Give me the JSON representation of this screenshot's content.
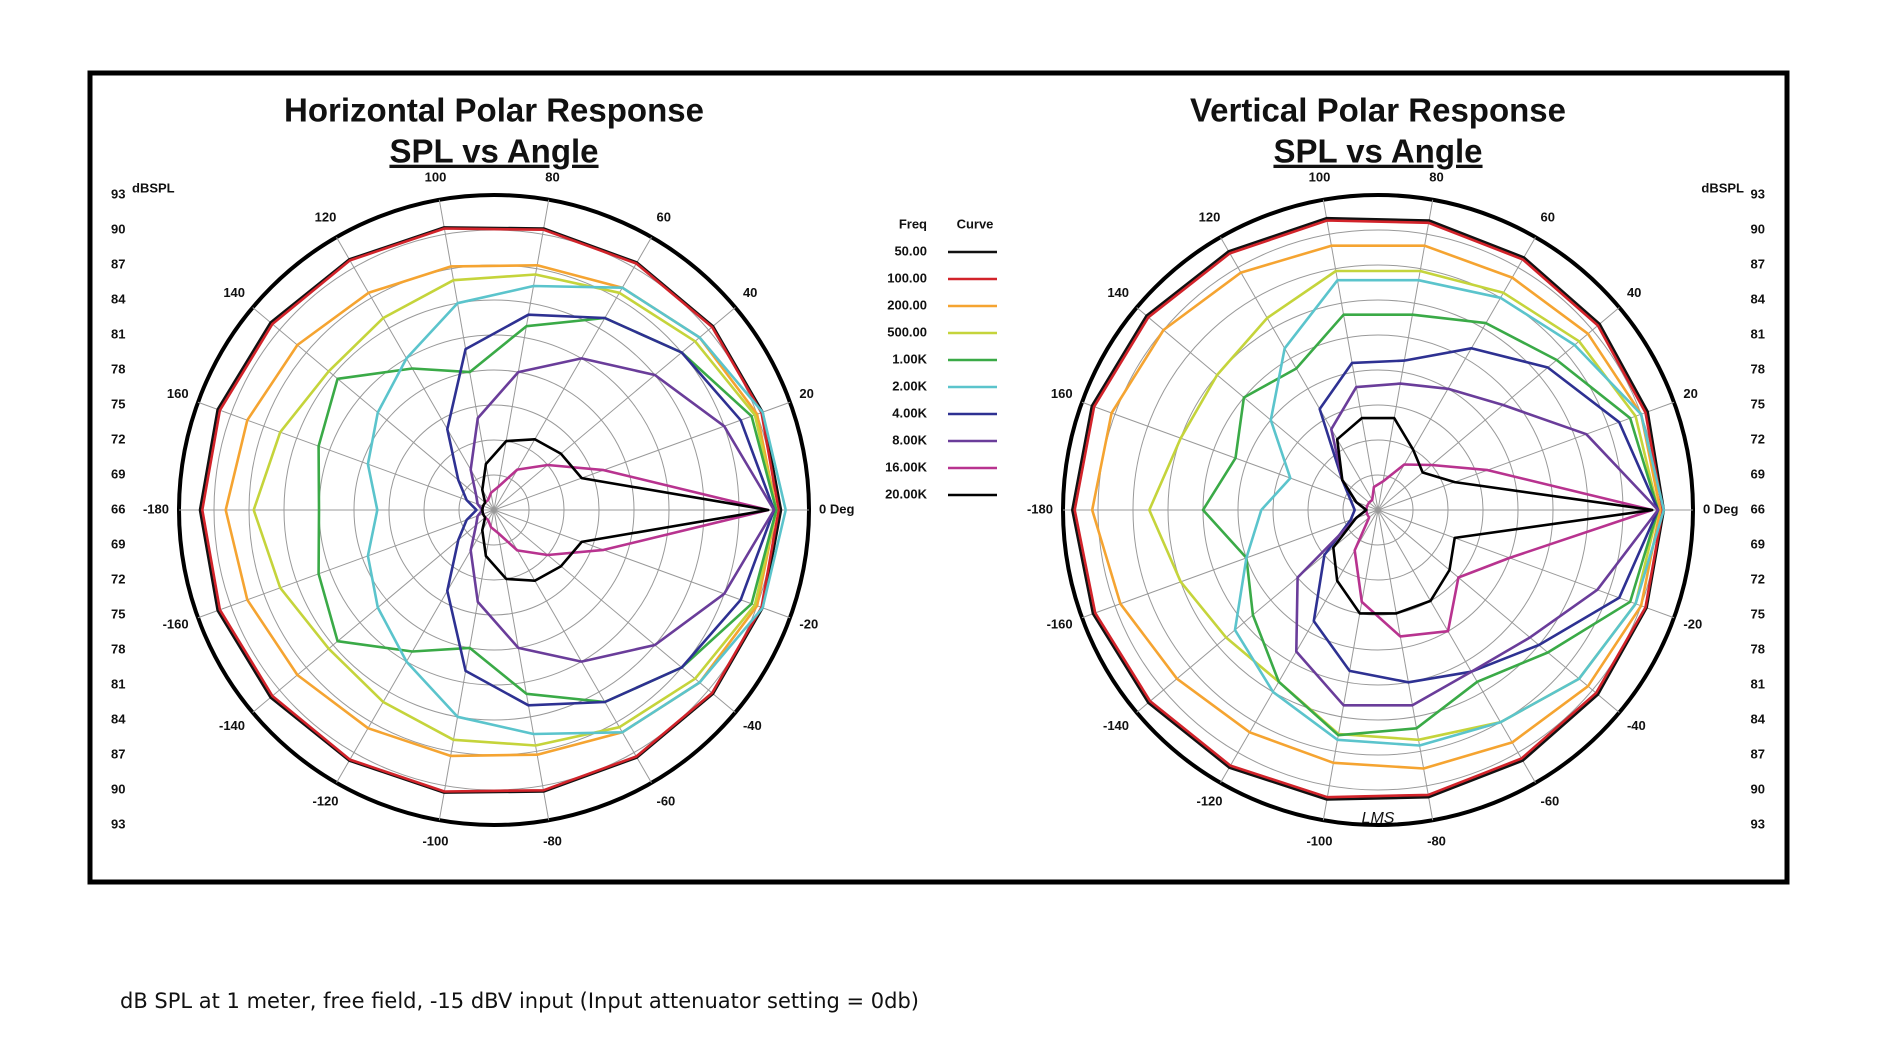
{
  "chart_data": [
    {
      "type": "polar",
      "title": "Horizontal Polar Response",
      "subtitle": "SPL vs Angle",
      "r_label": "dBSPL",
      "theta": [
        -180,
        -160,
        -140,
        -120,
        -100,
        -80,
        -60,
        -40,
        -20,
        0,
        20,
        40,
        60,
        80,
        100,
        120,
        140,
        160
      ],
      "rlim": [
        66,
        93
      ],
      "rticks": [
        66,
        69,
        72,
        75,
        78,
        81,
        84,
        87,
        90,
        93
      ],
      "thetaticks": [
        {
          "value": 0,
          "label": "0 Deg"
        },
        20,
        40,
        60,
        80,
        100,
        120,
        140,
        160,
        -180,
        -160,
        -140,
        -120,
        -100,
        -80,
        -60,
        -40,
        -20
      ],
      "series": [
        {
          "name": "50.00",
          "color": "#111111",
          "values": [
            91.2,
            91.2,
            91,
            90.8,
            90.6,
            90.5,
            90.5,
            90.5,
            90.5,
            90.6,
            90.5,
            90.5,
            90.5,
            90.5,
            90.6,
            90.8,
            91,
            91.2
          ]
        },
        {
          "name": "100.00",
          "color": "#d2232a",
          "values": [
            91,
            91,
            90.8,
            90.7,
            90.5,
            90.4,
            90.4,
            90.4,
            90.4,
            90.4,
            90.4,
            90.4,
            90.4,
            90.4,
            90.5,
            90.7,
            90.8,
            91
          ]
        },
        {
          "name": "200.00",
          "color": "#f5a431",
          "values": [
            89,
            88.5,
            88,
            87.6,
            87.4,
            87.3,
            88,
            89,
            90,
            90.2,
            90,
            89,
            88,
            87.3,
            87.2,
            87.5,
            88,
            88.5
          ]
        },
        {
          "name": "500.00",
          "color": "#c5d43b",
          "values": [
            86.6,
            85.5,
            84.5,
            85,
            86,
            86.5,
            87.5,
            88.5,
            89.8,
            90.2,
            89.8,
            88.5,
            87.5,
            86.5,
            86,
            85,
            84.5,
            85.5
          ]
        },
        {
          "name": "1.00K",
          "color": "#3aaa47",
          "values": [
            81,
            82,
            83.5,
            80,
            78,
            82,
            85,
            87,
            89.5,
            90.2,
            89.5,
            87,
            85,
            82,
            78,
            80,
            83.5,
            82
          ]
        },
        {
          "name": "2.00K",
          "color": "#5bc4cc",
          "values": [
            76,
            77.5,
            79,
            81,
            84,
            85.5,
            88,
            89,
            90.5,
            91,
            90.5,
            89,
            88,
            85.5,
            84,
            81,
            79,
            77.5
          ]
        },
        {
          "name": "4.00K",
          "color": "#2e3192",
          "values": [
            67.5,
            68.5,
            70,
            74,
            80,
            83,
            85,
            87,
            88.5,
            90,
            88.5,
            87,
            85,
            83,
            80,
            74,
            70,
            68.5
          ]
        },
        {
          "name": "8.00K",
          "color": "#6a3d9a",
          "values": [
            67,
            67.5,
            68,
            70,
            74,
            78,
            81,
            84,
            87,
            90,
            87,
            84,
            81,
            78,
            74,
            70,
            68,
            67.5
          ]
        },
        {
          "name": "16.00K",
          "color": "#b8338f",
          "values": [
            67,
            67,
            67,
            67,
            67.5,
            68,
            70,
            72,
            76,
            89.5,
            76,
            72,
            70,
            68,
            67.5,
            67,
            67,
            67
          ]
        },
        {
          "name": "20.00K",
          "color": "#000000",
          "values": [
            67,
            67,
            67,
            68,
            70,
            72,
            73,
            73.5,
            74,
            89.5,
            74,
            73.5,
            73,
            72,
            70,
            68,
            67,
            67
          ]
        }
      ]
    },
    {
      "type": "polar",
      "title": "Vertical Polar Response",
      "subtitle": "SPL vs Angle",
      "r_label": "dBSPL",
      "annotation": "LMS",
      "theta": [
        -180,
        -160,
        -140,
        -120,
        -100,
        -80,
        -60,
        -40,
        -20,
        0,
        20,
        40,
        60,
        80,
        100,
        120,
        140,
        160
      ],
      "rlim": [
        66,
        93
      ],
      "rticks": [
        66,
        69,
        72,
        75,
        78,
        81,
        84,
        87,
        90,
        93
      ],
      "thetaticks": [
        {
          "value": 0,
          "label": "0 Deg"
        },
        20,
        40,
        60,
        80,
        100,
        120,
        140,
        160,
        -180,
        -160,
        -140,
        -120,
        -100,
        -80,
        -60,
        -40,
        -20
      ],
      "series": [
        {
          "color": "#111111",
          "values": [
            92.2,
            92,
            91.7,
            91.5,
            91.2,
            91,
            90.8,
            90.6,
            90.5,
            90.5,
            90.6,
            90.8,
            91,
            91.2,
            91.4,
            91.6,
            91.9,
            92.1
          ]
        },
        {
          "color": "#d2232a",
          "values": [
            92,
            91.8,
            91.5,
            91.3,
            91,
            90.8,
            90.6,
            90.4,
            90.4,
            90.4,
            90.4,
            90.6,
            90.8,
            91,
            91.2,
            91.4,
            91.7,
            91.9
          ]
        },
        {
          "color": "#f5a431",
          "values": [
            90.5,
            89.5,
            88.5,
            88,
            88,
            88.5,
            89,
            89.5,
            90,
            90.2,
            90,
            89.5,
            89,
            89,
            89,
            89.5,
            90,
            90.3
          ]
        },
        {
          "color": "#c5d43b",
          "values": [
            85.6,
            84,
            83,
            83,
            85.5,
            86,
            87,
            88.5,
            89.5,
            90,
            89.5,
            88.5,
            87.5,
            86.8,
            86.8,
            85,
            84,
            84
          ]
        },
        {
          "color": "#3aaa47",
          "values": [
            81,
            78,
            80,
            83,
            85.6,
            85,
            83,
            85,
            89,
            90,
            89,
            86,
            84.5,
            83,
            83,
            80,
            81,
            79
          ]
        },
        {
          "color": "#5bc4cc",
          "values": [
            76,
            78,
            82,
            84,
            86,
            86.5,
            87,
            88.5,
            89.5,
            90.5,
            90,
            88,
            87,
            86,
            86,
            82,
            78,
            74
          ]
        },
        {
          "color": "#2e3192",
          "values": [
            68,
            68.5,
            72,
            77,
            80,
            81,
            82,
            84,
            88,
            90,
            88,
            85,
            82,
            79,
            78.8,
            76,
            70,
            68.5
          ]
        },
        {
          "color": "#6a3d9a",
          "values": [
            67,
            68,
            75,
            80,
            83,
            83,
            82,
            83,
            86,
            90,
            85,
            80,
            78,
            77,
            76.7,
            74,
            70,
            68
          ]
        },
        {
          "color": "#b8338f",
          "values": [
            67,
            67,
            67,
            70,
            74,
            77,
            78,
            75,
            78,
            89.5,
            76,
            72,
            70.5,
            68.5,
            68,
            67,
            67,
            67
          ]
        },
        {
          "color": "#000000",
          "values": [
            67,
            68,
            71,
            73,
            75,
            75,
            75,
            74,
            73,
            89.5,
            73,
            71,
            72,
            74,
            74,
            73,
            70,
            68
          ]
        }
      ]
    }
  ],
  "legend": {
    "freq_header": "Freq",
    "curve_header": "Curve"
  },
  "footnote": "dB SPL at 1 meter, free field, -15 dBV input (Input attenuator setting = 0db)"
}
